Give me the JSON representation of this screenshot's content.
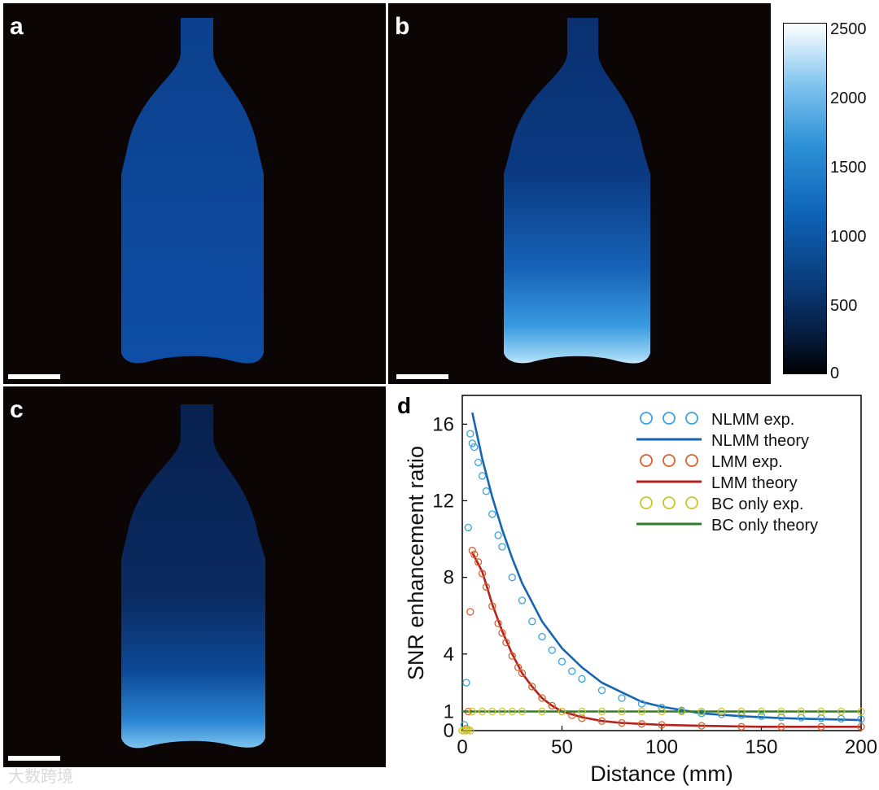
{
  "panels": {
    "a": {
      "letter": "a"
    },
    "b": {
      "letter": "b"
    },
    "c": {
      "letter": "c"
    },
    "d": {
      "letter": "d"
    }
  },
  "colorbar": {
    "ticks": [
      "2500",
      "2000",
      "1500",
      "1000",
      "500",
      "0"
    ],
    "range": [
      0,
      2500
    ]
  },
  "watermark": {
    "text": "大数跨境"
  },
  "colors": {
    "nlmm": "#3ba3dc",
    "nlmm_theory": "#1565b3",
    "lmm": "#d9622b",
    "lmm_theory": "#b3211e",
    "bc": "#c6c72a",
    "bc_theory": "#2f7d2a"
  },
  "chart_data": {
    "type": "line",
    "xlabel": "Distance (mm)",
    "ylabel": "SNR enhancement ratio",
    "xlim": [
      0,
      200
    ],
    "ylim": [
      0,
      17.5
    ],
    "xticks": [
      "0",
      "50",
      "100",
      "150",
      "200"
    ],
    "yticks": [
      "0",
      "1",
      "4",
      "8",
      "12",
      "16"
    ],
    "legend_position": "top-right",
    "legend": [
      {
        "label": "NLMM exp.",
        "kind": "markers",
        "color_key": "nlmm"
      },
      {
        "label": "NLMM theory",
        "kind": "line",
        "color_key": "nlmm_theory"
      },
      {
        "label": "LMM exp.",
        "kind": "markers",
        "color_key": "lmm"
      },
      {
        "label": "LMM theory",
        "kind": "line",
        "color_key": "lmm_theory"
      },
      {
        "label": "BC only exp.",
        "kind": "markers",
        "color_key": "bc"
      },
      {
        "label": "BC only theory",
        "kind": "line",
        "color_key": "bc_theory"
      }
    ],
    "series": [
      {
        "name": "NLMM theory",
        "kind": "line",
        "color_key": "nlmm_theory",
        "x": [
          5,
          10,
          15,
          20,
          25,
          30,
          40,
          50,
          60,
          70,
          80,
          90,
          100,
          120,
          140,
          160,
          180,
          200
        ],
        "y": [
          16.6,
          14.2,
          12.2,
          10.5,
          9.0,
          7.7,
          5.7,
          4.3,
          3.3,
          2.5,
          2.0,
          1.5,
          1.25,
          0.9,
          0.75,
          0.65,
          0.6,
          0.55
        ]
      },
      {
        "name": "NLMM exp.",
        "kind": "markers",
        "color_key": "nlmm",
        "x": [
          1,
          2,
          3,
          4,
          5,
          6,
          8,
          10,
          12,
          15,
          18,
          20,
          25,
          30,
          35,
          40,
          45,
          50,
          55,
          60,
          70,
          80,
          90,
          100,
          110,
          120,
          130,
          140,
          150,
          160,
          170,
          180,
          190,
          200
        ],
        "y": [
          0.3,
          2.5,
          10.6,
          15.5,
          15.0,
          14.8,
          14.0,
          13.3,
          12.5,
          11.3,
          10.2,
          9.6,
          8.0,
          6.8,
          5.7,
          4.9,
          4.2,
          3.6,
          3.1,
          2.7,
          2.1,
          1.7,
          1.4,
          1.2,
          1.05,
          0.9,
          0.85,
          0.8,
          0.75,
          0.7,
          0.68,
          0.65,
          0.62,
          0.6
        ]
      },
      {
        "name": "LMM theory",
        "kind": "line",
        "color_key": "lmm_theory",
        "x": [
          5,
          10,
          15,
          20,
          25,
          30,
          35,
          40,
          45,
          50,
          60,
          70,
          80,
          100,
          120,
          150,
          200
        ],
        "y": [
          9.3,
          8.3,
          6.6,
          5.2,
          4.0,
          3.0,
          2.3,
          1.7,
          1.3,
          1.0,
          0.7,
          0.5,
          0.4,
          0.3,
          0.25,
          0.2,
          0.2
        ]
      },
      {
        "name": "LMM exp.",
        "kind": "markers",
        "color_key": "lmm",
        "x": [
          2,
          3,
          4,
          5,
          6,
          8,
          10,
          12,
          15,
          18,
          20,
          22,
          25,
          28,
          30,
          35,
          40,
          45,
          50,
          55,
          60,
          70,
          80,
          90,
          100,
          120,
          140,
          160,
          180,
          200
        ],
        "y": [
          0.1,
          1.0,
          6.2,
          9.4,
          9.2,
          8.8,
          8.2,
          7.5,
          6.5,
          5.6,
          5.1,
          4.6,
          3.9,
          3.3,
          3.0,
          2.3,
          1.7,
          1.3,
          1.0,
          0.8,
          0.65,
          0.5,
          0.4,
          0.35,
          0.3,
          0.25,
          0.2,
          0.2,
          0.2,
          0.2
        ]
      },
      {
        "name": "BC only theory",
        "kind": "line",
        "color_key": "bc_theory",
        "x": [
          0,
          200
        ],
        "y": [
          1.0,
          1.0
        ]
      },
      {
        "name": "BC only exp.",
        "kind": "markers",
        "color_key": "bc",
        "x": [
          0,
          1,
          2,
          3,
          4,
          5,
          10,
          15,
          20,
          25,
          30,
          40,
          50,
          60,
          70,
          80,
          90,
          100,
          110,
          120,
          130,
          140,
          150,
          160,
          170,
          180,
          190,
          200
        ],
        "y": [
          0.0,
          0.0,
          0.0,
          0.05,
          0.0,
          1.0,
          1.0,
          1.0,
          1.0,
          1.0,
          1.0,
          1.0,
          1.0,
          1.0,
          1.0,
          1.0,
          1.0,
          1.0,
          1.0,
          1.0,
          1.0,
          1.0,
          1.0,
          1.0,
          1.0,
          1.0,
          1.0,
          1.0
        ]
      }
    ]
  }
}
